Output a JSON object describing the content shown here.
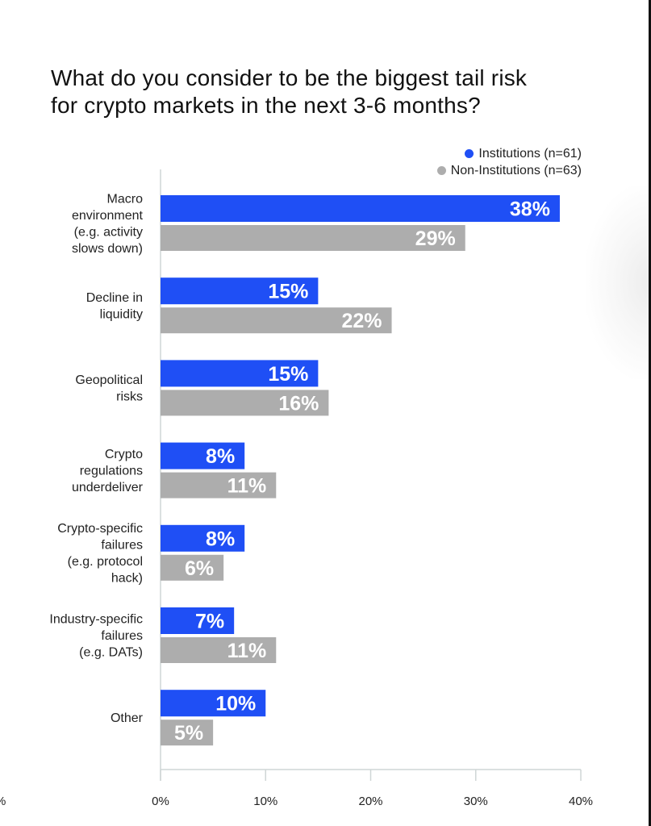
{
  "chart_data": {
    "type": "bar",
    "orientation": "horizontal",
    "title": "What do you consider to be the biggest tail risk for crypto markets in the next 3-6 months?",
    "title_lines": [
      "What do you consider to be the biggest tail risk",
      "for crypto markets in the next 3-6 months?"
    ],
    "categories": [
      [
        "Macro",
        "environment",
        "(e.g. activity",
        "slows down)"
      ],
      [
        "Decline in",
        "liquidity"
      ],
      [
        "Geopolitical",
        "risks"
      ],
      [
        "Crypto",
        "regulations",
        "underdeliver"
      ],
      [
        "Crypto-specific",
        "failures",
        "(e.g. protocol",
        "hack)"
      ],
      [
        "Industry-specific",
        "failures",
        "(e.g. DATs)"
      ],
      [
        "Other"
      ]
    ],
    "series": [
      {
        "name": "Institutions (n=61)",
        "color": "#1f4ff5",
        "values": [
          38,
          15,
          15,
          8,
          8,
          7,
          10
        ]
      },
      {
        "name": "Non-Institutions (n=63)",
        "color": "#adadad",
        "values": [
          29,
          22,
          16,
          11,
          6,
          11,
          5
        ]
      }
    ],
    "xlim": [
      0,
      40
    ],
    "xticks": [
      0,
      10,
      20,
      30,
      40
    ],
    "xtick_labels": [
      "0%",
      "10%",
      "20%",
      "30%",
      "40%"
    ],
    "cropped_tick_label": "%",
    "value_suffix": "%",
    "legend_position": "top-right",
    "grid": false
  }
}
